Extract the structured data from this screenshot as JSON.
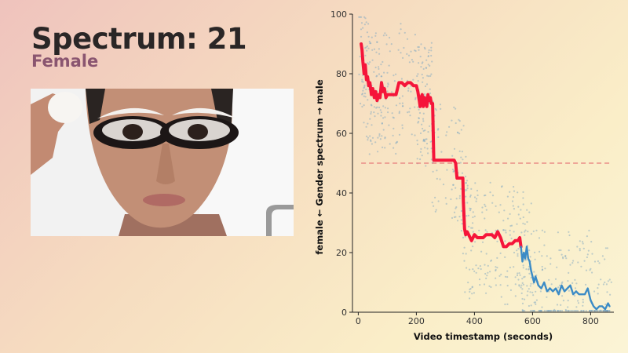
{
  "header": {
    "title": "Spectrum: 21",
    "subtitle": "Female"
  },
  "colors": {
    "female_line": "#f5153a",
    "male_line": "#3b8bc6",
    "threshold": "#e67a7a",
    "scatter": "#7fa8c2",
    "title": "#2a2626",
    "subtitle": "#8a5570"
  },
  "chart_data": {
    "type": "line",
    "title": "",
    "xlabel": "Video timestamp (seconds)",
    "ylabel": "female ← Gender spectrum → male",
    "xlim": [
      -20,
      880
    ],
    "ylim": [
      0,
      100
    ],
    "xticks": [
      0,
      200,
      400,
      600,
      800
    ],
    "yticks": [
      0,
      20,
      40,
      60,
      80,
      100
    ],
    "threshold": 50,
    "grid": false,
    "series": [
      {
        "color": "#f5153a",
        "x": [
          10,
          13,
          16,
          20,
          24,
          28,
          32,
          36,
          40,
          45,
          50,
          55,
          60,
          65,
          70,
          75,
          80,
          85,
          90,
          95,
          100,
          110,
          120,
          130,
          140,
          150,
          160,
          170,
          180,
          190,
          200,
          205,
          210,
          213,
          216,
          220,
          224,
          228,
          232,
          236,
          240,
          244,
          248,
          252,
          256,
          260,
          270,
          280,
          300,
          320,
          330,
          335,
          340,
          350,
          355,
          360,
          362,
          366,
          370,
          375,
          380,
          385,
          390,
          395,
          400,
          410,
          420,
          430,
          440,
          450,
          460,
          470,
          480,
          490,
          500,
          510,
          520,
          530,
          540,
          550,
          556,
          560
        ],
        "y": [
          90,
          88,
          84,
          80,
          83,
          78,
          79,
          76,
          77,
          73,
          75,
          72,
          74,
          71,
          73,
          72,
          77,
          74,
          75,
          72,
          73,
          73,
          73,
          73,
          77,
          77,
          76,
          77,
          77,
          76,
          76,
          74,
          71,
          69,
          72,
          73,
          69,
          72,
          71,
          69,
          73,
          71,
          72,
          70,
          70,
          51,
          51,
          51,
          51,
          51,
          51,
          50,
          45,
          45,
          45,
          45,
          37,
          28,
          26,
          27,
          26,
          25,
          24,
          25,
          26,
          25,
          25,
          25,
          26,
          26,
          26,
          25,
          27,
          25,
          22,
          22,
          23,
          23,
          24,
          24,
          25,
          22
        ]
      },
      {
        "color": "#3b8bc6",
        "x": [
          560,
          565,
          570,
          575,
          580,
          585,
          590,
          595,
          600,
          605,
          610,
          620,
          630,
          640,
          650,
          660,
          670,
          680,
          690,
          700,
          710,
          720,
          730,
          740,
          750,
          760,
          770,
          780,
          790,
          800,
          810,
          820,
          830,
          840,
          850,
          855,
          860,
          865
        ],
        "y": [
          22,
          17,
          20,
          18,
          22,
          18,
          17,
          14,
          12,
          10,
          12,
          9,
          8,
          10,
          7,
          8,
          7,
          8,
          6,
          9,
          7,
          8,
          9,
          6,
          7,
          6,
          6,
          6,
          8,
          4,
          2,
          1,
          2,
          2,
          1,
          2,
          3,
          2
        ]
      }
    ]
  }
}
